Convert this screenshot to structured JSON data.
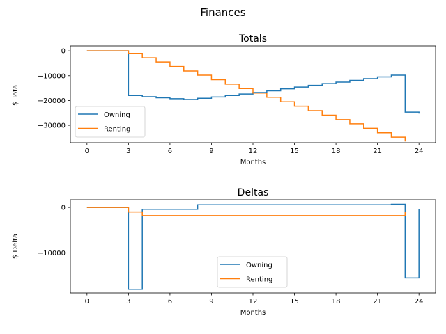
{
  "figure": {
    "suptitle": "Finances"
  },
  "chart_data": [
    {
      "type": "line",
      "drawstyle": "steps-post",
      "title": "Totals",
      "xlabel": "Months",
      "ylabel": "$ Total",
      "xlim": [
        -1.2,
        25.2
      ],
      "ylim": [
        -37000,
        2000
      ],
      "xticks": [
        0,
        3,
        6,
        9,
        12,
        15,
        18,
        21,
        24
      ],
      "xtick_labels": [
        "0",
        "3",
        "6",
        "9",
        "12",
        "15",
        "18",
        "21",
        "24"
      ],
      "yticks": [
        0,
        -10000,
        -20000,
        -30000
      ],
      "ytick_labels": [
        "0",
        "−10000",
        "−20000",
        "−30000"
      ],
      "legend": "lower-left",
      "grid": false,
      "series": [
        {
          "name": "Owning",
          "color": "#1f77b4",
          "x": [
            0,
            1,
            2,
            3,
            4,
            5,
            6,
            7,
            8,
            9,
            10,
            11,
            12,
            13,
            14,
            15,
            16,
            17,
            18,
            19,
            20,
            21,
            22,
            23,
            24
          ],
          "y": [
            0,
            0,
            0,
            -18000,
            -18500,
            -18900,
            -19300,
            -19600,
            -19100,
            -18600,
            -18000,
            -17400,
            -16800,
            -16100,
            -15300,
            -14600,
            -13900,
            -13200,
            -12600,
            -11900,
            -11200,
            -10500,
            -9800,
            -24700,
            -25300
          ]
        },
        {
          "name": "Renting",
          "color": "#ff7f0e",
          "x": [
            0,
            1,
            2,
            3,
            4,
            5,
            6,
            7,
            8,
            9,
            10,
            11,
            12,
            13,
            14,
            15,
            16,
            17,
            18,
            19,
            20,
            21,
            22,
            23
          ],
          "y": [
            0,
            0,
            0,
            -1000,
            -2800,
            -4500,
            -6300,
            -8100,
            -9800,
            -11600,
            -13400,
            -15200,
            -17000,
            -18700,
            -20500,
            -22300,
            -24100,
            -25900,
            -27700,
            -29400,
            -31200,
            -33000,
            -34800,
            -36500
          ]
        }
      ]
    },
    {
      "type": "line",
      "drawstyle": "steps-post",
      "title": "Deltas",
      "xlabel": "Months",
      "ylabel": "$ Delta",
      "xlim": [
        -1.2,
        25.2
      ],
      "ylim": [
        -18800,
        1700
      ],
      "xticks": [
        0,
        3,
        6,
        9,
        12,
        15,
        18,
        21,
        24
      ],
      "xtick_labels": [
        "0",
        "3",
        "6",
        "9",
        "12",
        "15",
        "18",
        "21",
        "24"
      ],
      "yticks": [
        0,
        -10000
      ],
      "ytick_labels": [
        "0",
        "−10000"
      ],
      "legend": "lower-center",
      "grid": false,
      "series": [
        {
          "name": "Owning",
          "color": "#1f77b4",
          "x": [
            0,
            1,
            2,
            3,
            4,
            5,
            6,
            7,
            8,
            9,
            10,
            11,
            12,
            13,
            14,
            15,
            16,
            17,
            18,
            19,
            20,
            21,
            22,
            23,
            24
          ],
          "y": [
            0,
            0,
            0,
            -18000,
            -400,
            -400,
            -400,
            -400,
            600,
            600,
            600,
            600,
            600,
            600,
            600,
            600,
            600,
            600,
            600,
            600,
            600,
            600,
            700,
            -15500,
            -300
          ]
        },
        {
          "name": "Renting",
          "color": "#ff7f0e",
          "x": [
            0,
            1,
            2,
            3,
            4,
            5,
            6,
            7,
            8,
            9,
            10,
            11,
            12,
            13,
            14,
            15,
            16,
            17,
            18,
            19,
            20,
            21,
            22,
            23
          ],
          "y": [
            0,
            0,
            0,
            -1000,
            -1800,
            -1800,
            -1800,
            -1800,
            -1800,
            -1800,
            -1800,
            -1800,
            -1800,
            -1800,
            -1800,
            -1800,
            -1800,
            -1800,
            -1800,
            -1800,
            -1800,
            -1800,
            -1800,
            -900
          ]
        }
      ]
    }
  ]
}
